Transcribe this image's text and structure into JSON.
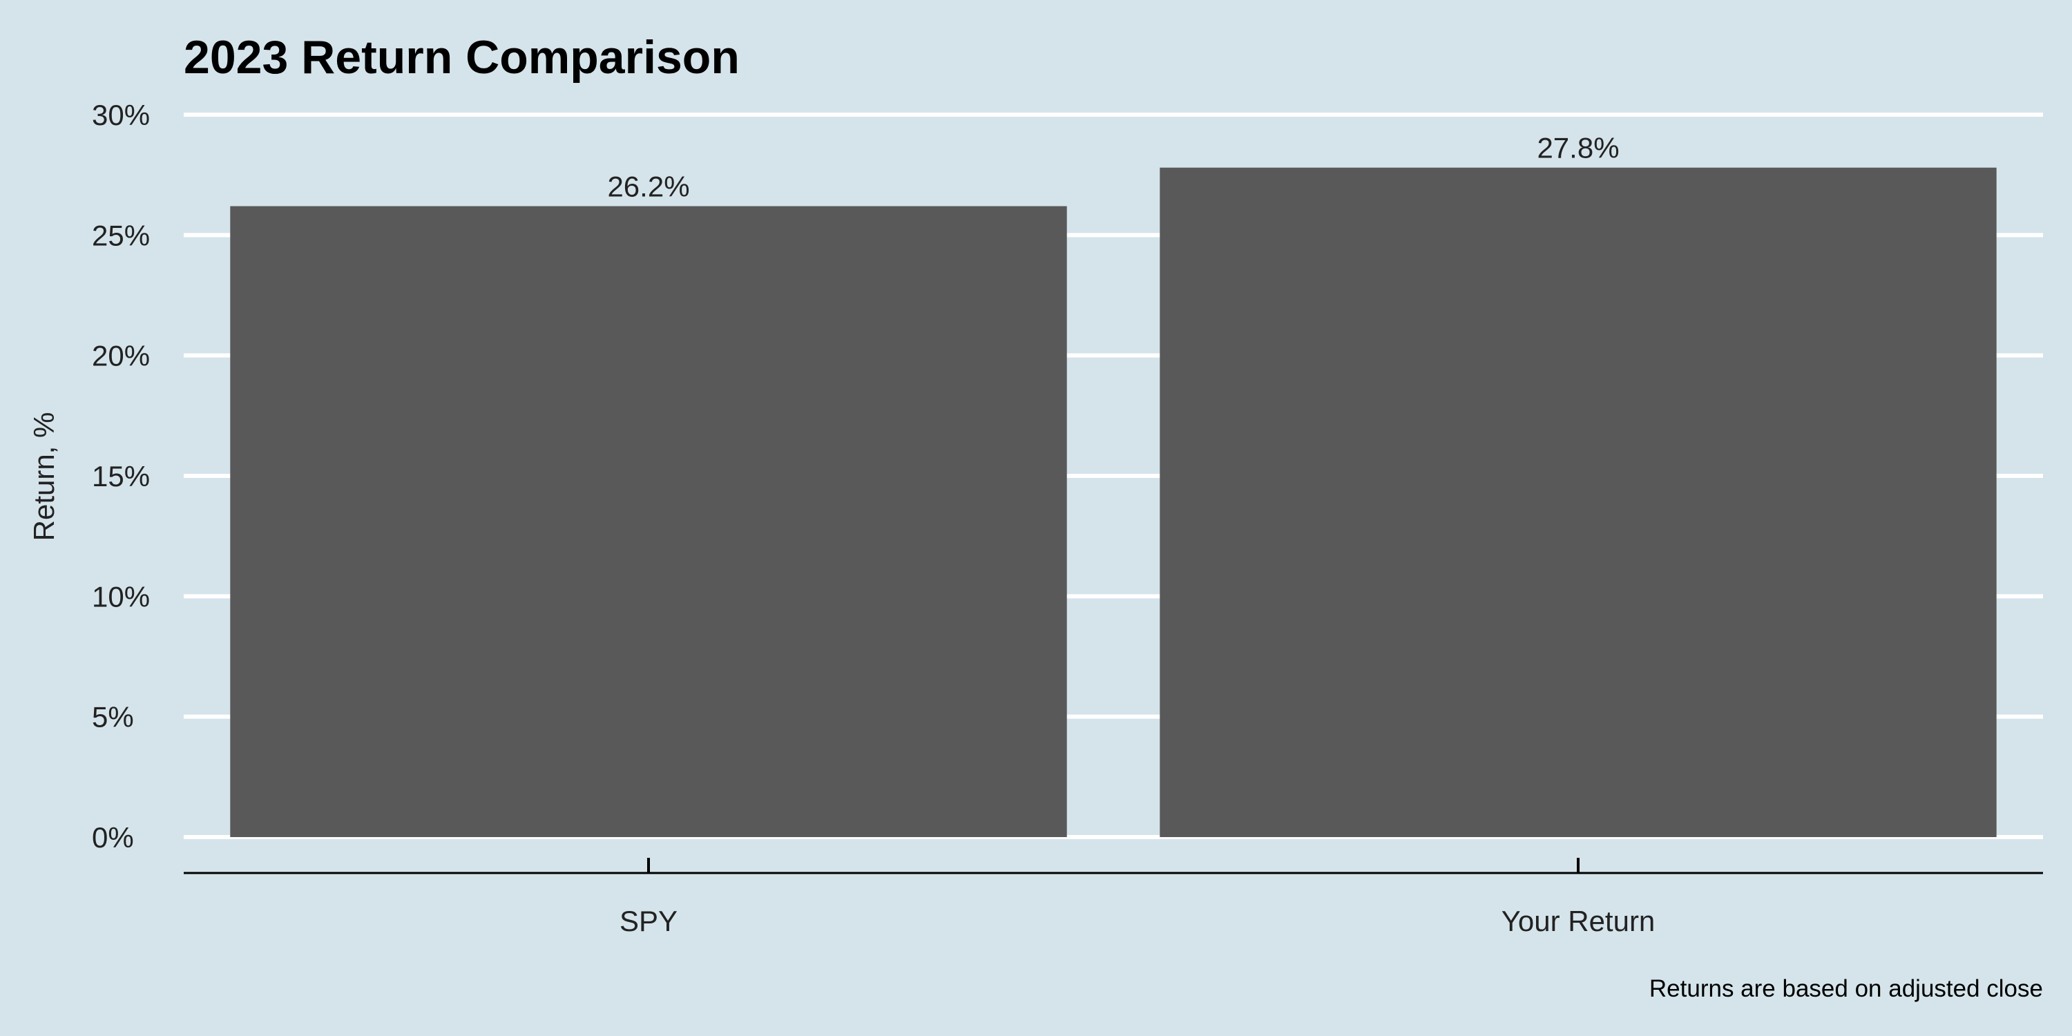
{
  "chart_data": {
    "type": "bar",
    "title": "2023 Return Comparison",
    "xlabel": "",
    "ylabel": "Return, %",
    "caption": "Returns are based on adjusted close",
    "categories": [
      "SPY",
      "Your Return"
    ],
    "values": [
      26.2,
      27.8
    ],
    "value_labels": [
      "26.2%",
      "27.8%"
    ],
    "ylim": [
      0,
      30
    ],
    "y_ticks": [
      0,
      5,
      10,
      15,
      20,
      25,
      30
    ],
    "y_tick_labels": [
      "0%",
      "5%",
      "10%",
      "15%",
      "20%",
      "25%",
      "30%"
    ],
    "grid": "horizontal",
    "colors": {
      "background": "#d5e4eb",
      "bar": "#595959",
      "grid": "#ffffff",
      "axis": "#000000"
    }
  }
}
